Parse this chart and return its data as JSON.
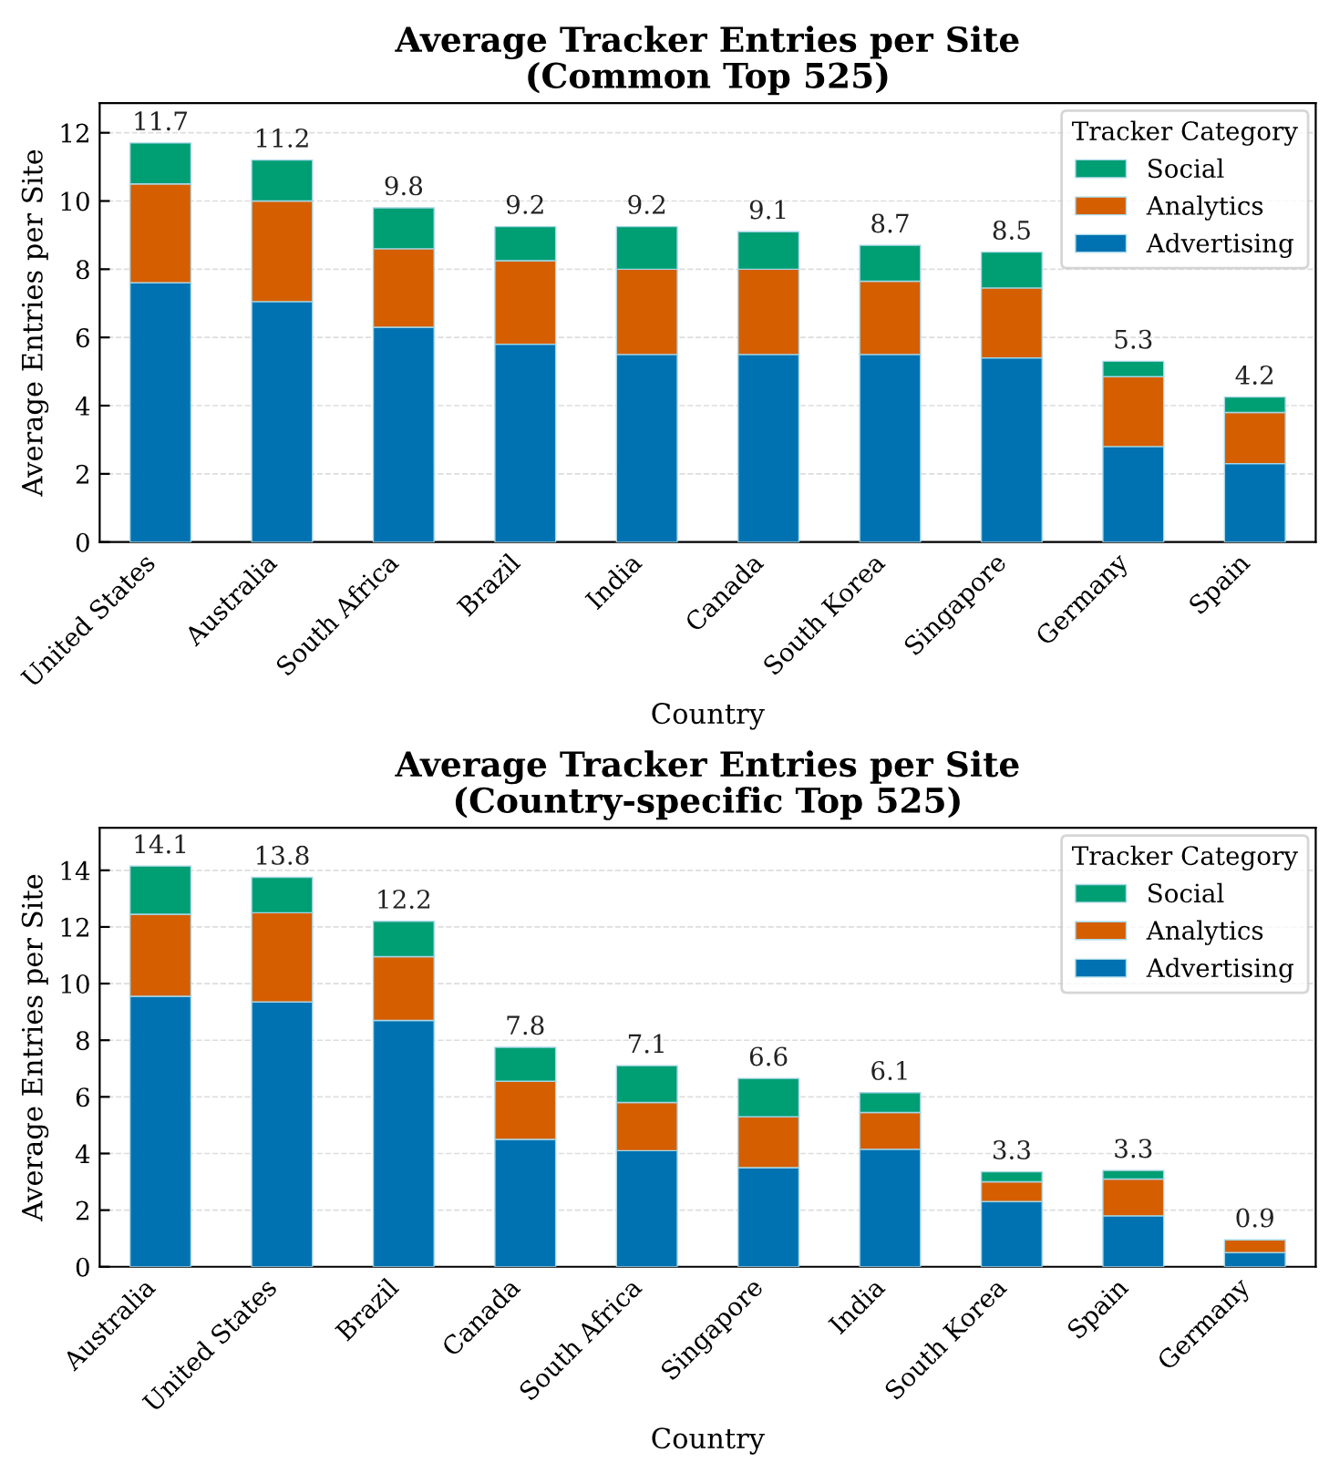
{
  "chart_data": [
    {
      "type": "bar",
      "stacked": true,
      "title": "Average Tracker Entries per Site\n(Common Top 525)",
      "xlabel": "Country",
      "ylabel": "Average Entries per Site",
      "legend_title": "Tracker Category",
      "legend": "top right",
      "grid": "y",
      "categories": [
        "United States",
        "Australia",
        "South Africa",
        "Brazil",
        "India",
        "Canada",
        "South Korea",
        "Singapore",
        "Germany",
        "Spain"
      ],
      "series": [
        {
          "name": "Advertising",
          "color": "#0072b2",
          "values": [
            7.6,
            7.05,
            6.3,
            5.8,
            5.5,
            5.5,
            5.5,
            5.4,
            2.8,
            2.3
          ]
        },
        {
          "name": "Analytics",
          "color": "#d55e00",
          "values": [
            2.9,
            2.95,
            2.3,
            2.45,
            2.5,
            2.5,
            2.15,
            2.05,
            2.05,
            1.5
          ]
        },
        {
          "name": "Social",
          "color": "#009e73",
          "values": [
            1.2,
            1.2,
            1.2,
            1.0,
            1.25,
            1.1,
            1.05,
            1.05,
            0.45,
            0.45
          ]
        }
      ],
      "totals": [
        "11.7",
        "11.2",
        "9.8",
        "9.2",
        "9.2",
        "9.1",
        "8.7",
        "8.5",
        "5.3",
        "4.2"
      ],
      "ylim": [
        0,
        12.87
      ],
      "yticks": [
        0,
        2,
        4,
        6,
        8,
        10,
        12
      ]
    },
    {
      "type": "bar",
      "stacked": true,
      "title": "Average Tracker Entries per Site\n(Country-specific Top 525)",
      "xlabel": "Country",
      "ylabel": "Average Entries per Site",
      "legend_title": "Tracker Category",
      "legend": "top right",
      "grid": "y",
      "categories": [
        "Australia",
        "United States",
        "Brazil",
        "Canada",
        "South Africa",
        "Singapore",
        "India",
        "South Korea",
        "Spain",
        "Germany"
      ],
      "series": [
        {
          "name": "Advertising",
          "color": "#0072b2",
          "values": [
            9.55,
            9.35,
            8.7,
            4.5,
            4.1,
            3.5,
            4.15,
            2.3,
            1.8,
            0.5
          ]
        },
        {
          "name": "Analytics",
          "color": "#d55e00",
          "values": [
            2.9,
            3.15,
            2.25,
            2.05,
            1.7,
            1.8,
            1.3,
            0.7,
            1.3,
            0.45
          ]
        },
        {
          "name": "Social",
          "color": "#009e73",
          "values": [
            1.7,
            1.25,
            1.25,
            1.2,
            1.3,
            1.35,
            0.7,
            0.35,
            0.3,
            null
          ]
        }
      ],
      "totals": [
        "14.1",
        "13.8",
        "12.2",
        "7.8",
        "7.1",
        "6.6",
        "6.1",
        "3.3",
        "3.3",
        "0.9"
      ],
      "ylim": [
        0,
        15.5
      ],
      "yticks": [
        0,
        2,
        4,
        6,
        8,
        10,
        12,
        14
      ]
    }
  ]
}
